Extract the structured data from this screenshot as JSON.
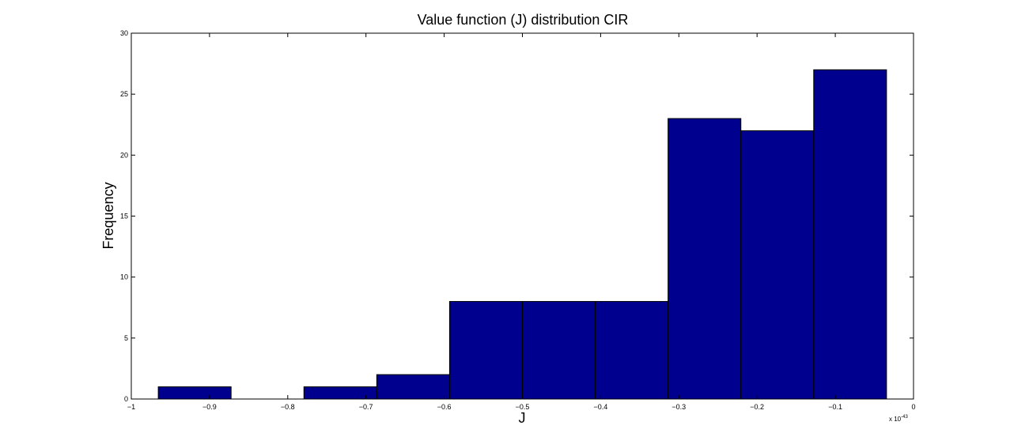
{
  "chart_data": {
    "type": "bar",
    "title": "Value function (J) distribution CIR",
    "xlabel": "J",
    "ylabel": "Frequency",
    "x_exponent_label": "x 10",
    "x_exponent_power": "-43",
    "xlim": [
      -1,
      0
    ],
    "ylim": [
      0,
      30
    ],
    "grid": false,
    "x_ticks": [
      -1,
      -0.9,
      -0.8,
      -0.7,
      -0.6,
      -0.5,
      -0.4,
      -0.3,
      -0.2,
      -0.1,
      0
    ],
    "x_tick_labels": [
      "-1",
      "-0.9",
      "-0.8",
      "-0.7",
      "-0.6",
      "-0.5",
      "-0.4",
      "-0.3",
      "-0.2",
      "-0.1",
      "0"
    ],
    "y_ticks": [
      0,
      5,
      10,
      15,
      20,
      25,
      30
    ],
    "y_tick_labels": [
      "0",
      "5",
      "10",
      "15",
      "20",
      "25",
      "30"
    ],
    "bin_edges": [
      -0.9655,
      -0.8724,
      -0.7793,
      -0.6862,
      -0.5931,
      -0.5,
      -0.4069,
      -0.3138,
      -0.2207,
      -0.1276,
      -0.0345
    ],
    "values": [
      1,
      0,
      1,
      2,
      8,
      8,
      8,
      23,
      22,
      27
    ],
    "bar_color": "#00008f",
    "edge_color": "#000000"
  }
}
